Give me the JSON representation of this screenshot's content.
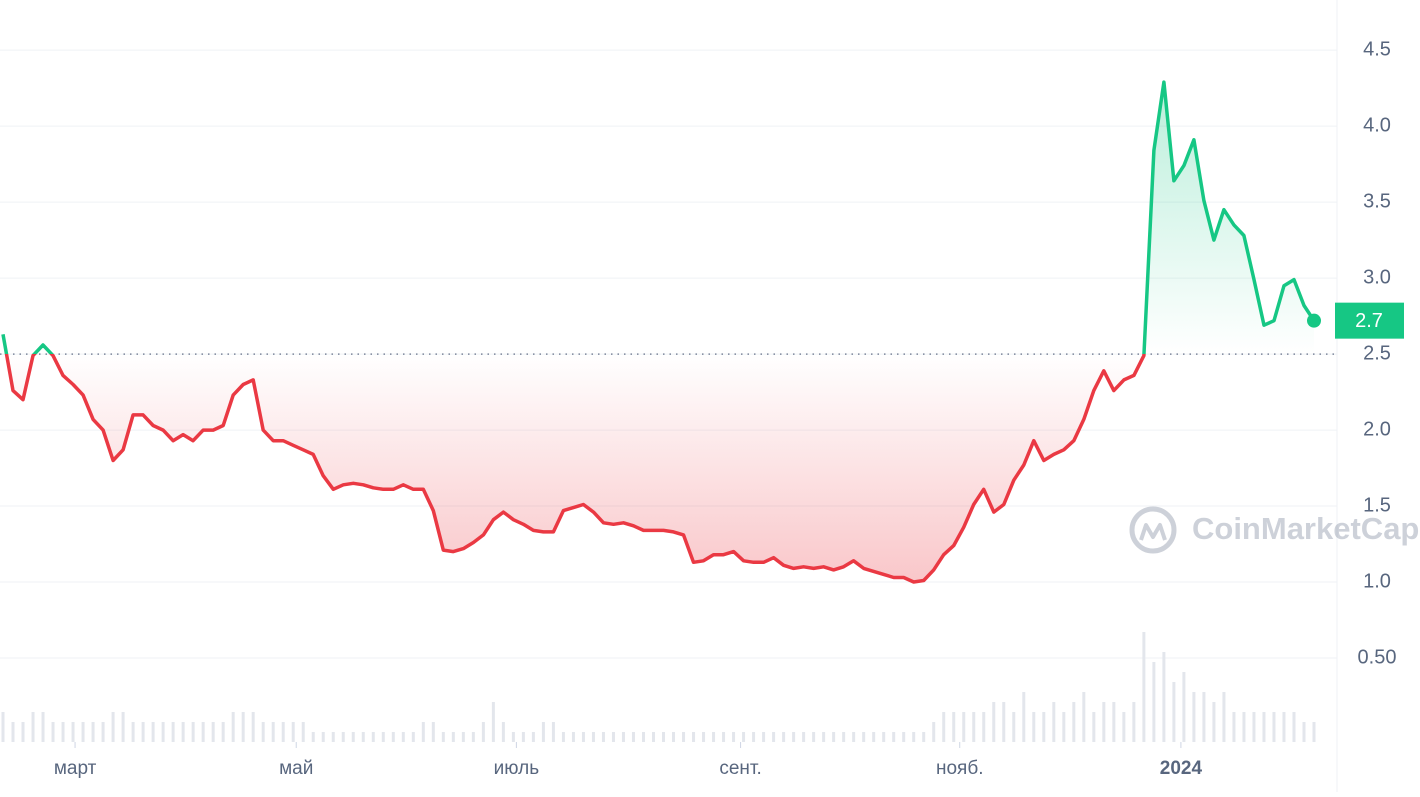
{
  "chart_data": {
    "type": "line",
    "baseline": 2.5,
    "color_up": "#16c784",
    "color_down": "#ea3943",
    "price_label": "2.7",
    "watermark": "CoinMarketCap",
    "ylim": [
      0,
      4.83
    ],
    "yticks": [
      {
        "value": 0.5,
        "label": "0.50"
      },
      {
        "value": 1,
        "label": "1.0"
      },
      {
        "value": 1.5,
        "label": "1.5"
      },
      {
        "value": 2,
        "label": "2.0"
      },
      {
        "value": 2.5,
        "label": "2.5"
      },
      {
        "value": 3,
        "label": "3.0"
      },
      {
        "value": 3.5,
        "label": "3.5"
      },
      {
        "value": 4,
        "label": "4.0"
      },
      {
        "value": 4.5,
        "label": "4.5"
      }
    ],
    "grid": true,
    "xlim": [
      0,
      131
    ],
    "xticks": [
      {
        "value": 7.2,
        "label": "март"
      },
      {
        "value": 29.3,
        "label": "май"
      },
      {
        "value": 51.3,
        "label": "июль"
      },
      {
        "value": 73.7,
        "label": "сент."
      },
      {
        "value": 95.6,
        "label": "нояб."
      },
      {
        "value": 117.7,
        "label": "2024"
      }
    ],
    "values": [
      2.63,
      2.26,
      2.2,
      2.49,
      2.56,
      2.49,
      2.36,
      2.3,
      2.23,
      2.07,
      2.0,
      1.8,
      1.87,
      2.1,
      2.1,
      2.03,
      2.0,
      1.93,
      1.97,
      1.93,
      2.0,
      2.0,
      2.03,
      2.23,
      2.3,
      2.33,
      2.0,
      1.93,
      1.93,
      1.9,
      1.87,
      1.84,
      1.7,
      1.61,
      1.64,
      1.65,
      1.64,
      1.62,
      1.61,
      1.61,
      1.64,
      1.61,
      1.61,
      1.47,
      1.21,
      1.2,
      1.22,
      1.26,
      1.31,
      1.41,
      1.46,
      1.41,
      1.38,
      1.34,
      1.33,
      1.33,
      1.47,
      1.49,
      1.51,
      1.46,
      1.39,
      1.38,
      1.39,
      1.37,
      1.34,
      1.34,
      1.34,
      1.33,
      1.31,
      1.13,
      1.14,
      1.18,
      1.18,
      1.2,
      1.14,
      1.13,
      1.13,
      1.16,
      1.11,
      1.09,
      1.1,
      1.09,
      1.1,
      1.08,
      1.1,
      1.14,
      1.09,
      1.07,
      1.05,
      1.03,
      1.03,
      1.0,
      1.01,
      1.08,
      1.18,
      1.24,
      1.36,
      1.51,
      1.61,
      1.46,
      1.51,
      1.67,
      1.77,
      1.93,
      1.8,
      1.84,
      1.87,
      1.93,
      2.07,
      2.26,
      2.39,
      2.26,
      2.33,
      2.36,
      2.49,
      3.84,
      4.29,
      3.64,
      3.74,
      3.91,
      3.51,
      3.25,
      3.45,
      3.35,
      3.28,
      2.99,
      2.69,
      2.72,
      2.95,
      2.99,
      2.82,
      2.72
    ],
    "volume": [
      3,
      2,
      2,
      3,
      3,
      2,
      2,
      2,
      2,
      2,
      2,
      3,
      3,
      2,
      2,
      2,
      2,
      2,
      2,
      2,
      2,
      2,
      2,
      3,
      3,
      3,
      2,
      2,
      2,
      2,
      2,
      1,
      1,
      1,
      1,
      1,
      1,
      1,
      1,
      1,
      1,
      1,
      2,
      2,
      1,
      1,
      1,
      1,
      2,
      4,
      2,
      1,
      1,
      1,
      2,
      2,
      1,
      1,
      1,
      1,
      1,
      1,
      1,
      1,
      1,
      1,
      1,
      1,
      1,
      1,
      1,
      1,
      1,
      1,
      1,
      1,
      1,
      1,
      1,
      1,
      1,
      1,
      1,
      1,
      1,
      1,
      1,
      1,
      1,
      1,
      1,
      1,
      1,
      2,
      3,
      3,
      3,
      3,
      3,
      4,
      4,
      3,
      5,
      3,
      3,
      4,
      3,
      4,
      5,
      3,
      4,
      4,
      3,
      4,
      11,
      8,
      9,
      6,
      7,
      5,
      5,
      4,
      5,
      3,
      3,
      3,
      3,
      3,
      3,
      3,
      2,
      2
    ]
  }
}
